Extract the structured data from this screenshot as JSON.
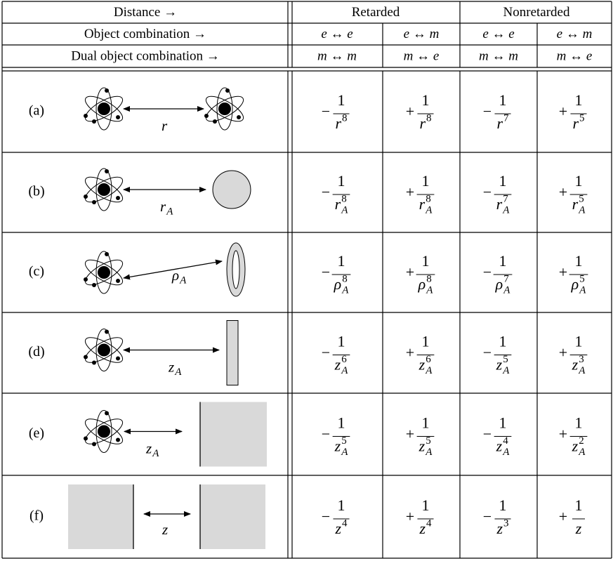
{
  "header": {
    "rows": [
      {
        "label": "Distance →",
        "cells": [
          "Retarded",
          "Nonretarded"
        ]
      },
      {
        "label": "Object combination →",
        "cells": [
          "e ↔ e",
          "e ↔ m",
          "e ↔ e",
          "e ↔ m"
        ]
      },
      {
        "label": "Dual object combination →",
        "cells": [
          "m ↔ m",
          "m ↔ e",
          "m ↔ m",
          "m ↔ e"
        ]
      }
    ]
  },
  "rows": [
    {
      "label": "(a)",
      "distance": {
        "symbol": "r"
      },
      "entries": [
        {
          "sign": "−",
          "numerator": "1",
          "base": "r",
          "exponent": "8"
        },
        {
          "sign": "+",
          "numerator": "1",
          "base": "r",
          "exponent": "8"
        },
        {
          "sign": "−",
          "numerator": "1",
          "base": "r",
          "exponent": "7"
        },
        {
          "sign": "+",
          "numerator": "1",
          "base": "r",
          "exponent": "5"
        }
      ]
    },
    {
      "label": "(b)",
      "distance": {
        "symbol": "r",
        "subscript": "A"
      },
      "entries": [
        {
          "sign": "−",
          "numerator": "1",
          "base": "r",
          "subscript": "A",
          "exponent": "8"
        },
        {
          "sign": "+",
          "numerator": "1",
          "base": "r",
          "subscript": "A",
          "exponent": "8"
        },
        {
          "sign": "−",
          "numerator": "1",
          "base": "r",
          "subscript": "A",
          "exponent": "7"
        },
        {
          "sign": "+",
          "numerator": "1",
          "base": "r",
          "subscript": "A",
          "exponent": "5"
        }
      ]
    },
    {
      "label": "(c)",
      "distance": {
        "symbol": "ρ",
        "subscript": "A"
      },
      "entries": [
        {
          "sign": "−",
          "numerator": "1",
          "base": "ρ",
          "subscript": "A",
          "exponent": "8"
        },
        {
          "sign": "+",
          "numerator": "1",
          "base": "ρ",
          "subscript": "A",
          "exponent": "8"
        },
        {
          "sign": "−",
          "numerator": "1",
          "base": "ρ",
          "subscript": "A",
          "exponent": "7"
        },
        {
          "sign": "+",
          "numerator": "1",
          "base": "ρ",
          "subscript": "A",
          "exponent": "5"
        }
      ]
    },
    {
      "label": "(d)",
      "distance": {
        "symbol": "z",
        "subscript": "A"
      },
      "entries": [
        {
          "sign": "−",
          "numerator": "1",
          "base": "z",
          "subscript": "A",
          "exponent": "6"
        },
        {
          "sign": "+",
          "numerator": "1",
          "base": "z",
          "subscript": "A",
          "exponent": "6"
        },
        {
          "sign": "−",
          "numerator": "1",
          "base": "z",
          "subscript": "A",
          "exponent": "5"
        },
        {
          "sign": "+",
          "numerator": "1",
          "base": "z",
          "subscript": "A",
          "exponent": "3"
        }
      ]
    },
    {
      "label": "(e)",
      "distance": {
        "symbol": "z",
        "subscript": "A"
      },
      "entries": [
        {
          "sign": "−",
          "numerator": "1",
          "base": "z",
          "subscript": "A",
          "exponent": "5"
        },
        {
          "sign": "+",
          "numerator": "1",
          "base": "z",
          "subscript": "A",
          "exponent": "5"
        },
        {
          "sign": "−",
          "numerator": "1",
          "base": "z",
          "subscript": "A",
          "exponent": "4"
        },
        {
          "sign": "+",
          "numerator": "1",
          "base": "z",
          "subscript": "A",
          "exponent": "2"
        }
      ]
    },
    {
      "label": "(f)",
      "distance": {
        "symbol": "z"
      },
      "entries": [
        {
          "sign": "−",
          "numerator": "1",
          "base": "z",
          "exponent": "4"
        },
        {
          "sign": "+",
          "numerator": "1",
          "base": "z",
          "exponent": "4"
        },
        {
          "sign": "−",
          "numerator": "1",
          "base": "z",
          "exponent": "3"
        },
        {
          "sign": "+",
          "numerator": "1",
          "base": "z"
        }
      ]
    }
  ]
}
